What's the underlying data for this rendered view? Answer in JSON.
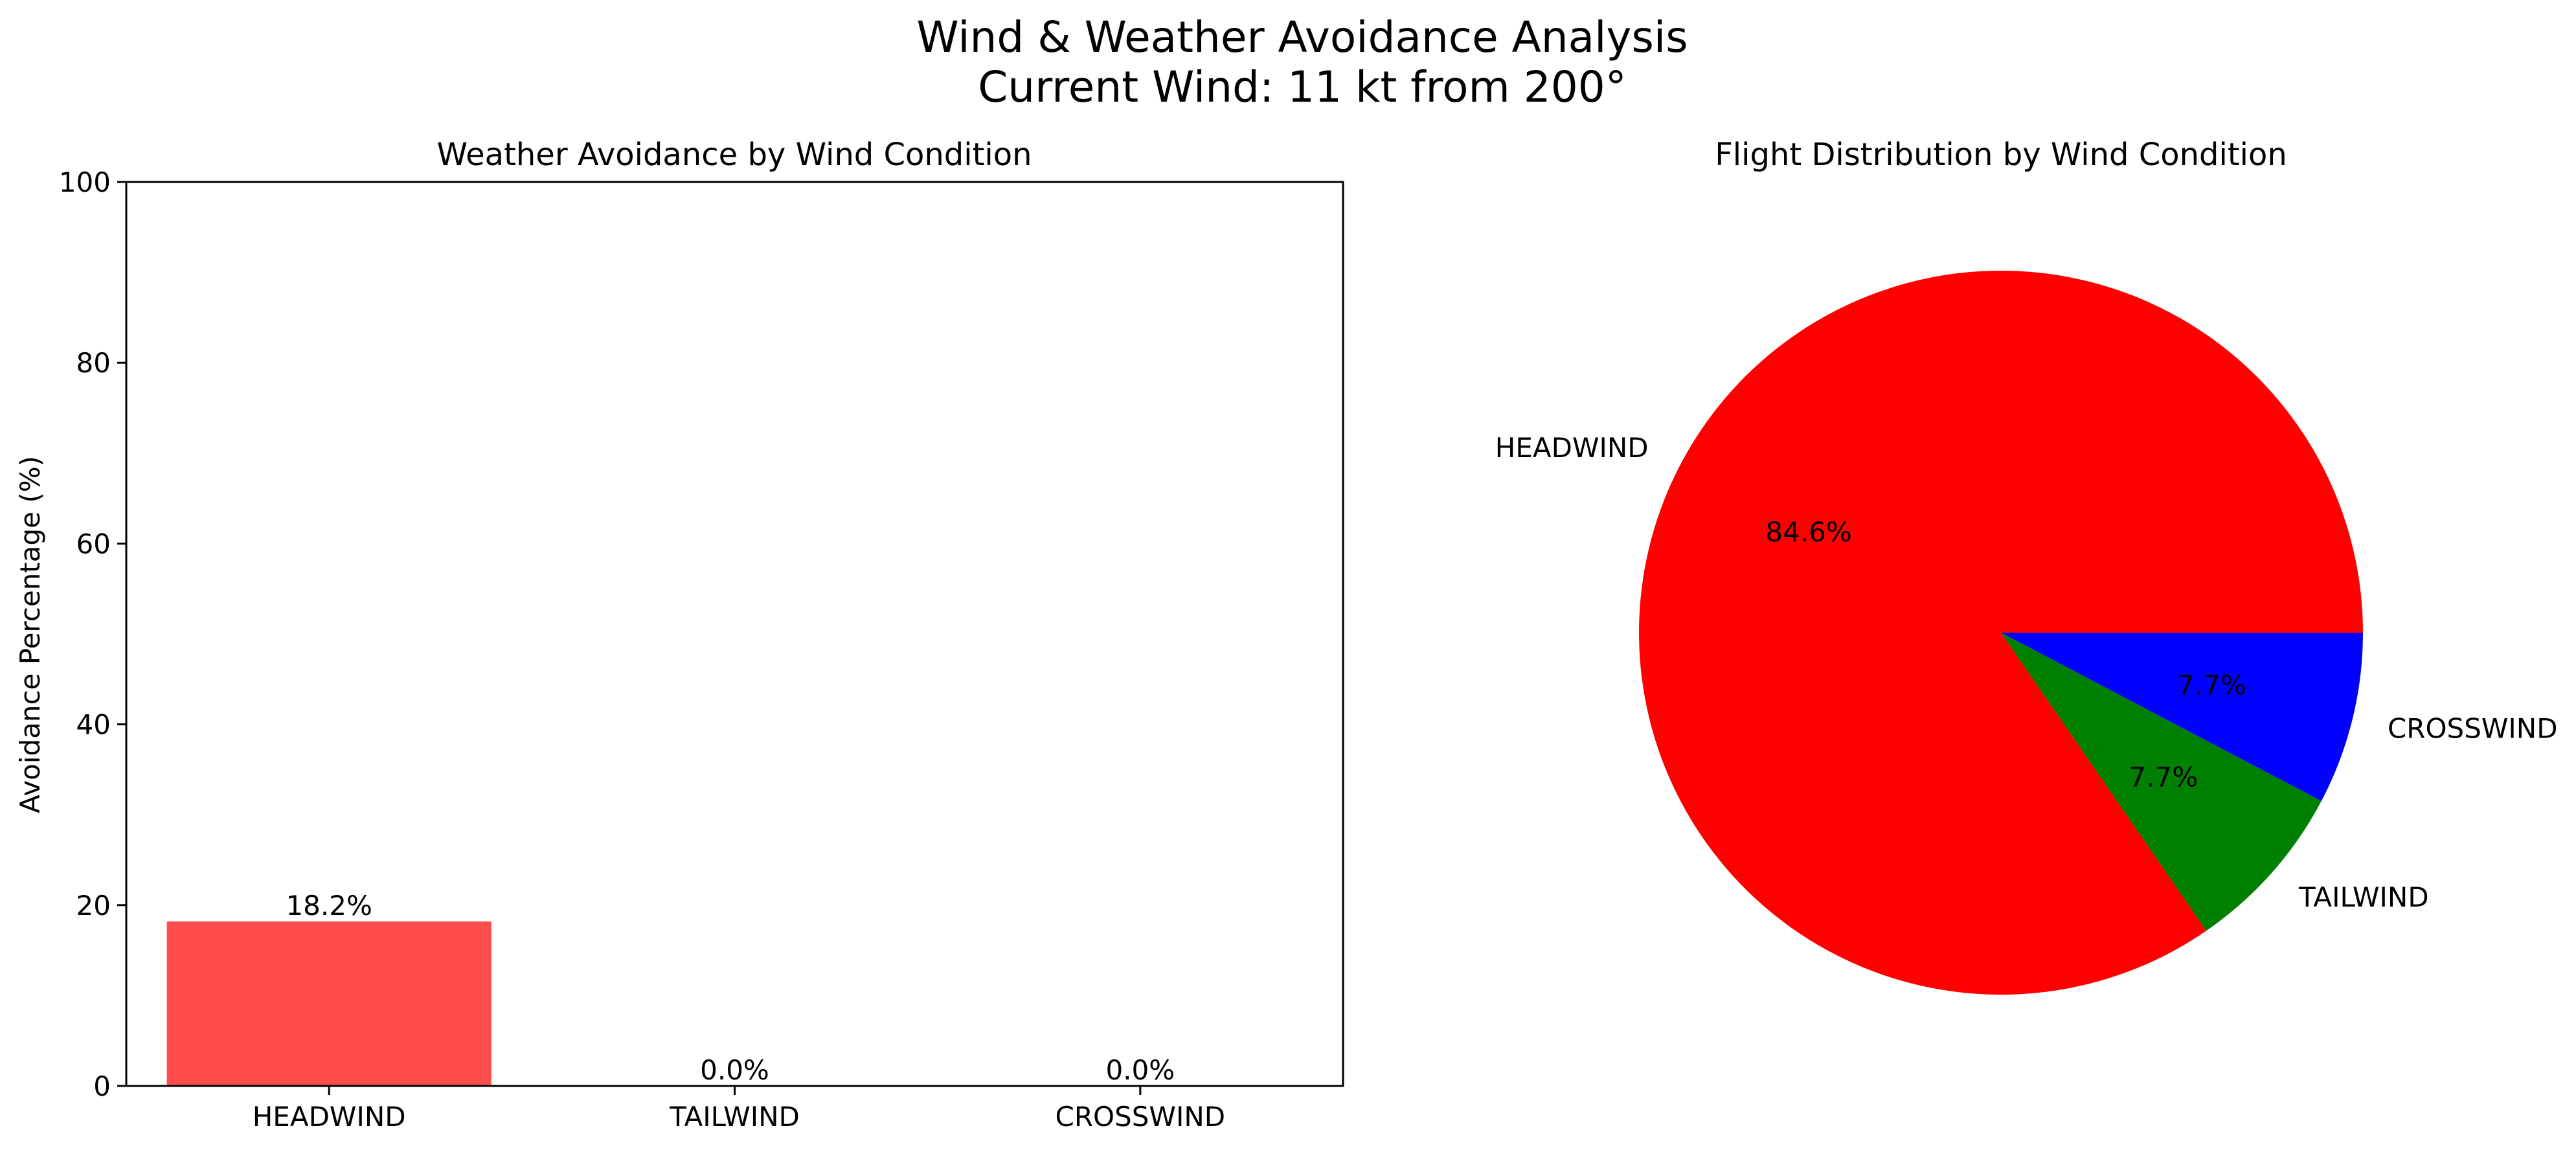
{
  "figure": {
    "title_line1": "Wind & Weather Avoidance Analysis",
    "title_line2": "Current Wind: 11 kt from 200°"
  },
  "chart_data": [
    {
      "type": "bar",
      "title": "Weather Avoidance by Wind Condition",
      "xlabel": "",
      "ylabel": "Avoidance Percentage (%)",
      "categories": [
        "HEADWIND",
        "TAILWIND",
        "CROSSWIND"
      ],
      "values": [
        18.2,
        0.0,
        0.0
      ],
      "value_labels": [
        "18.2%",
        "0.0%",
        "0.0%"
      ],
      "ylim": [
        0,
        100
      ],
      "yticks": [
        0,
        20,
        40,
        60,
        80,
        100
      ],
      "ytick_labels": [
        "0",
        "20",
        "40",
        "60",
        "80",
        "100"
      ],
      "grid": false,
      "colors": [
        "#ff4d4d",
        "#ff4d4d",
        "#ff4d4d"
      ]
    },
    {
      "type": "pie",
      "title": "Flight Distribution by Wind Condition",
      "labels": [
        "HEADWIND",
        "TAILWIND",
        "CROSSWIND"
      ],
      "values": [
        84.6,
        7.7,
        7.7
      ],
      "pct_labels": [
        "84.6%",
        "7.7%",
        "7.7%"
      ],
      "colors": [
        "#ff0000",
        "#008000",
        "#0000ff"
      ]
    }
  ]
}
